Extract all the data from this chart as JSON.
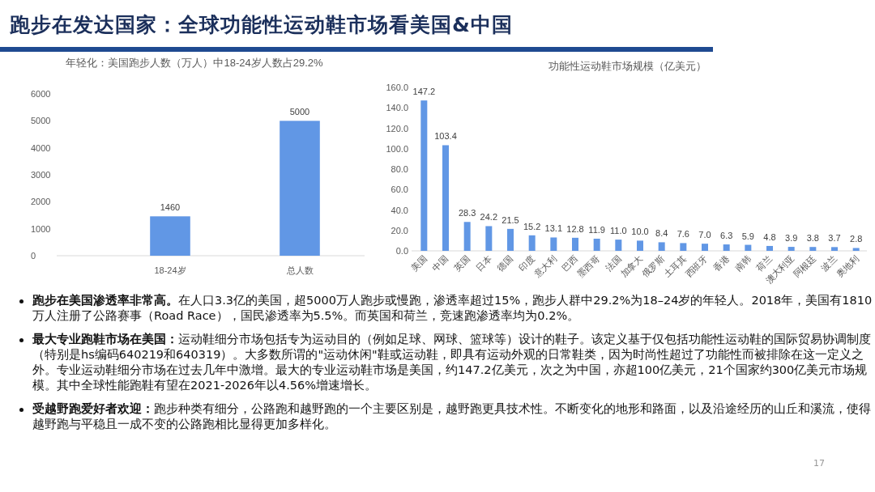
{
  "chart_data": [
    {
      "type": "bar",
      "title": "年轻化：美国跑步人数（万人）中18-24岁人数占29.2%",
      "categories": [
        "18-24岁",
        "总人数"
      ],
      "values": [
        1460,
        5000
      ],
      "color": "#6197e5",
      "ylim": [
        0,
        6000
      ],
      "yticks": [
        0,
        1000,
        2000,
        3000,
        4000,
        5000,
        6000
      ],
      "data_labels": true
    },
    {
      "type": "bar",
      "title": "功能性运动鞋市场规模（亿美元）",
      "categories": [
        "美国",
        "中国",
        "英国",
        "日本",
        "德国",
        "印度",
        "意大利",
        "巴西",
        "墨西哥",
        "法国",
        "加拿大",
        "俄罗斯",
        "土耳其",
        "西班牙",
        "香港",
        "南韩",
        "荷兰",
        "澳大利亚",
        "阿根廷",
        "波兰",
        "奥地利"
      ],
      "values": [
        147.2,
        103.4,
        28.3,
        24.2,
        21.5,
        15.2,
        13.1,
        12.8,
        11.9,
        11.0,
        10.0,
        8.4,
        7.6,
        7.0,
        6.3,
        5.9,
        4.8,
        3.9,
        3.8,
        3.7,
        2.8
      ],
      "value_labels": [
        "147.2",
        "103.4",
        "28.3",
        "24.2",
        "21.5",
        "15.2",
        "13.1",
        "12.8",
        "11.9",
        "11.0",
        "10.0",
        "8.4",
        "7.6",
        "7.0",
        "6.3",
        "5.9",
        "4.8",
        "3.9",
        "3.8",
        "3.7",
        "2.8"
      ],
      "color": "#6197e5",
      "ylim": [
        0,
        160
      ],
      "yticks": [
        {
          "value": 0,
          "label": "0.0"
        },
        {
          "value": 20,
          "label": "20.0"
        },
        {
          "value": 40,
          "label": "40.0"
        },
        {
          "value": 60,
          "label": "60.0"
        },
        {
          "value": 80,
          "label": "80.0"
        },
        {
          "value": 100,
          "label": "100.0"
        },
        {
          "value": 120,
          "label": "120.0"
        },
        {
          "value": 140,
          "label": "140.0"
        },
        {
          "value": 160,
          "label": "160.0"
        }
      ]
    },
    {
      "type": "other",
      "title": "跑步在发达国家：全球功能性运动鞋市场看美国&中国",
      "annotations": [
        "**跑步在美国渗透率非常高。**在人口3.3亿的美国，超5000万人跑步或慢跑，渗透率超过15%，跑步人群中29.2%为18–24岁的年轻人。2018年，美国有1810万人注册了公路赛事（Road Race），国民渗透率为5.5%。而英国和荷兰，竞速跑渗透率均为0.2%。",
        "**最大专业跑鞋市场在美国：**运动鞋细分市场包括专为运动目的（例如足球、网球、篮球等）设计的鞋子。该定义基于仅包括功能性运动鞋的国际贸易协调制度（特别是hs编码640219和640319）。大多数所谓的\"运动休闲\"鞋或运动鞋，即具有运动外观的日常鞋类，因为时尚性超过了功能性而被排除在这一定义之外。专业运动鞋细分市场在过去几年中激增。最大的专业运动鞋市场是美国，约147.2亿美元，次之为中国，亦超100亿美元，21个国家约300亿美元市场规模。其中全球性能跑鞋有望在2021-2026年以4.56%增速增长。",
        "**受越野跑爱好者欢迎：**跑步种类有细分，公路跑和越野跑的一个主要区别是，越野跑更具技术性。不断变化的地形和路面，以及沿途经历的山丘和溪流，使得越野跑与平稳且一成不变的公路跑相比显得更加多样化。",
        "17"
      ]
    }
  ]
}
